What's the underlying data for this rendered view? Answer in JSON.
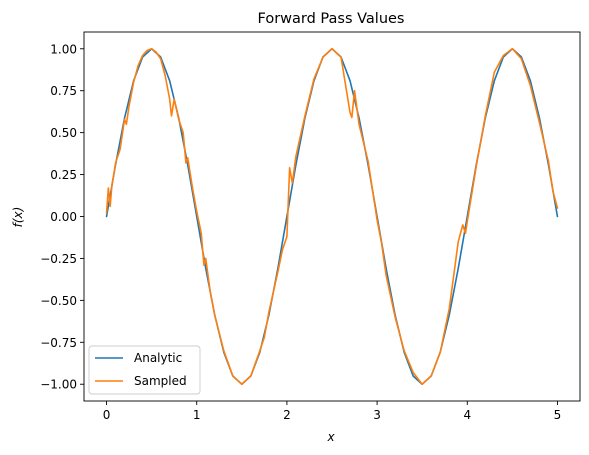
{
  "chart_data": {
    "type": "line",
    "title": "Forward Pass Values",
    "xlabel": "x",
    "ylabel": "f(x)",
    "xlim": [
      -0.25,
      5.25
    ],
    "ylim": [
      -1.1,
      1.1
    ],
    "xticks": [
      0,
      1,
      2,
      3,
      4,
      5
    ],
    "xtick_labels": [
      "0",
      "1",
      "2",
      "3",
      "4",
      "5"
    ],
    "yticks": [
      -1.0,
      -0.75,
      -0.5,
      -0.25,
      0.0,
      0.25,
      0.5,
      0.75,
      1.0
    ],
    "ytick_labels": [
      "−1.00",
      "−0.75",
      "−0.50",
      "−0.25",
      "0.00",
      "0.25",
      "0.50",
      "0.75",
      "1.00"
    ],
    "grid": false,
    "legend_position": "lower-left",
    "series": [
      {
        "name": "Analytic",
        "color": "#1f77b4",
        "x": [
          0.0,
          0.1,
          0.2,
          0.3,
          0.4,
          0.5,
          0.6,
          0.7,
          0.8,
          0.9,
          1.0,
          1.1,
          1.2,
          1.3,
          1.4,
          1.5,
          1.6,
          1.7,
          1.8,
          1.9,
          2.0,
          2.1,
          2.2,
          2.3,
          2.4,
          2.5,
          2.6,
          2.7,
          2.8,
          2.9,
          3.0,
          3.1,
          3.2,
          3.3,
          3.4,
          3.5,
          3.6,
          3.7,
          3.8,
          3.9,
          4.0,
          4.1,
          4.2,
          4.3,
          4.4,
          4.5,
          4.6,
          4.7,
          4.8,
          4.9,
          5.0
        ],
        "y": [
          0.0,
          0.309,
          0.588,
          0.809,
          0.951,
          1.0,
          0.951,
          0.809,
          0.588,
          0.309,
          0.0,
          -0.309,
          -0.588,
          -0.809,
          -0.951,
          -1.0,
          -0.951,
          -0.809,
          -0.588,
          -0.309,
          0.0,
          0.309,
          0.588,
          0.809,
          0.951,
          1.0,
          0.951,
          0.809,
          0.588,
          0.309,
          0.0,
          -0.309,
          -0.588,
          -0.809,
          -0.951,
          -1.0,
          -0.951,
          -0.809,
          -0.588,
          -0.309,
          0.0,
          0.309,
          0.588,
          0.809,
          0.951,
          1.0,
          0.951,
          0.809,
          0.588,
          0.309,
          0.0
        ]
      },
      {
        "name": "Sampled",
        "color": "#ff7f0e",
        "x": [
          0.0,
          0.02,
          0.04,
          0.06,
          0.08,
          0.1,
          0.15,
          0.2,
          0.22,
          0.25,
          0.3,
          0.35,
          0.4,
          0.45,
          0.5,
          0.55,
          0.6,
          0.65,
          0.7,
          0.72,
          0.75,
          0.8,
          0.85,
          0.88,
          0.9,
          0.95,
          1.0,
          1.05,
          1.08,
          1.1,
          1.15,
          1.2,
          1.3,
          1.4,
          1.5,
          1.6,
          1.7,
          1.75,
          1.8,
          1.9,
          1.95,
          2.0,
          2.03,
          2.06,
          2.1,
          2.2,
          2.3,
          2.4,
          2.5,
          2.6,
          2.7,
          2.72,
          2.75,
          2.8,
          2.9,
          3.0,
          3.05,
          3.1,
          3.2,
          3.3,
          3.4,
          3.5,
          3.6,
          3.7,
          3.8,
          3.9,
          3.95,
          3.98,
          4.0,
          4.1,
          4.15,
          4.2,
          4.3,
          4.4,
          4.5,
          4.6,
          4.7,
          4.8,
          4.9,
          4.95,
          5.0
        ],
        "y": [
          0.02,
          0.17,
          0.06,
          0.19,
          0.25,
          0.32,
          0.4,
          0.58,
          0.55,
          0.66,
          0.8,
          0.9,
          0.96,
          0.99,
          1.0,
          0.98,
          0.94,
          0.84,
          0.7,
          0.6,
          0.7,
          0.58,
          0.5,
          0.32,
          0.35,
          0.18,
          0.03,
          -0.1,
          -0.29,
          -0.25,
          -0.45,
          -0.59,
          -0.8,
          -0.95,
          -1.0,
          -0.95,
          -0.8,
          -0.72,
          -0.57,
          -0.33,
          -0.2,
          -0.12,
          0.29,
          0.2,
          0.36,
          0.6,
          0.82,
          0.95,
          1.0,
          0.95,
          0.62,
          0.59,
          0.75,
          0.55,
          0.33,
          -0.02,
          -0.16,
          -0.35,
          -0.6,
          -0.8,
          -0.93,
          -1.0,
          -0.95,
          -0.81,
          -0.55,
          -0.15,
          -0.05,
          -0.1,
          -0.03,
          0.3,
          0.45,
          0.6,
          0.86,
          0.96,
          1.0,
          0.94,
          0.78,
          0.56,
          0.33,
          0.15,
          0.05
        ]
      }
    ]
  }
}
